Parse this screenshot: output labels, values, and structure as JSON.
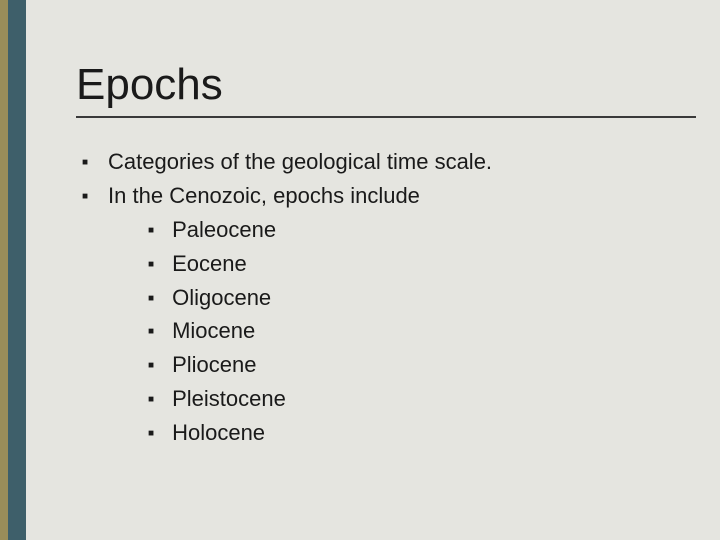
{
  "colors": {
    "background": "#e5e5e0",
    "left_stripe_outer": "#9a8d5a",
    "left_stripe_inner": "#3e5f6a",
    "text": "#1a1a1a",
    "underline": "#3a3a3a"
  },
  "title": "Epochs",
  "bullets": [
    {
      "text": "Categories of the geological time scale."
    },
    {
      "text": "In the Cenozoic, epochs include",
      "children": [
        "Paleocene",
        "Eocene",
        "Oligocene",
        "Miocene",
        "Pliocene",
        "Pleistocene",
        "Holocene"
      ]
    }
  ],
  "typography": {
    "title_fontsize": 44,
    "body_fontsize": 22,
    "font_family": "Arial"
  }
}
